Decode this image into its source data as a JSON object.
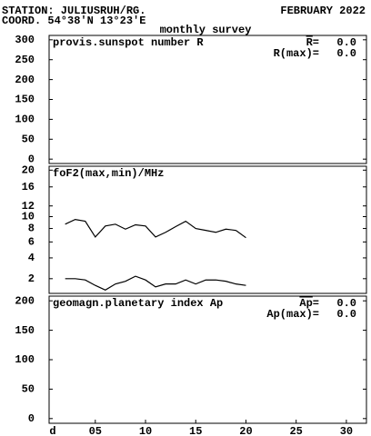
{
  "header": {
    "station": "STATION: JULIUSRUH/RG.",
    "month": "FEBRUARY 2022",
    "coord": "COORD. 54°38'N 13°23'E",
    "subtitle": "monthly survey"
  },
  "chart_data": [
    {
      "type": "line",
      "title": "provis.sunspot number R",
      "xlim": [
        0.4,
        32
      ],
      "ylim": [
        -11,
        311
      ],
      "yticks": [
        0,
        50,
        100,
        150,
        200,
        250,
        300
      ],
      "stats": [
        {
          "name": "R=",
          "value": 0,
          "label": "0.0",
          "overline": true
        },
        {
          "name": "R(max)=",
          "value": 0,
          "label": "0.0"
        }
      ],
      "series": []
    },
    {
      "type": "line",
      "title": "foF2(max,min)/MHz",
      "yscale": "sqrt",
      "xlim": [
        0.4,
        32
      ],
      "ylim": [
        1,
        21
      ],
      "yticks": [
        2,
        4,
        6,
        8,
        10,
        12,
        16,
        20
      ],
      "x": [
        2,
        3,
        4,
        5,
        6,
        7,
        8,
        9,
        10,
        11,
        12,
        13,
        14,
        15,
        16,
        17,
        18,
        19,
        20
      ],
      "series": [
        {
          "name": "max",
          "color": "#000000",
          "values": [
            8.7,
            9.5,
            9.2,
            6.7,
            8.4,
            8.7,
            7.9,
            8.6,
            8.4,
            6.7,
            7.4,
            8.3,
            9.2,
            8.0,
            7.7,
            7.4,
            7.9,
            7.7,
            6.6
          ]
        },
        {
          "name": "min",
          "color": "#000000",
          "values": [
            2.0,
            2.0,
            1.9,
            1.5,
            1.2,
            1.6,
            1.8,
            2.2,
            1.9,
            1.4,
            1.6,
            1.6,
            1.9,
            1.6,
            1.9,
            1.9,
            1.8,
            1.6,
            1.5
          ]
        }
      ]
    },
    {
      "type": "line",
      "title": "geomagn.planetary index Ap",
      "xlabel": "d",
      "xlim": [
        0.4,
        32
      ],
      "ylim": [
        -8,
        208
      ],
      "yticks": [
        0,
        50,
        100,
        150,
        200
      ],
      "xticks": [
        {
          "value": 5,
          "label": "05"
        },
        10,
        15,
        20,
        25,
        30
      ],
      "stats": [
        {
          "name": "Ap=",
          "value": 0,
          "label": "0.0",
          "overline": true
        },
        {
          "name": "Ap(max)=",
          "value": 0,
          "label": "0.0"
        }
      ],
      "series": []
    }
  ]
}
